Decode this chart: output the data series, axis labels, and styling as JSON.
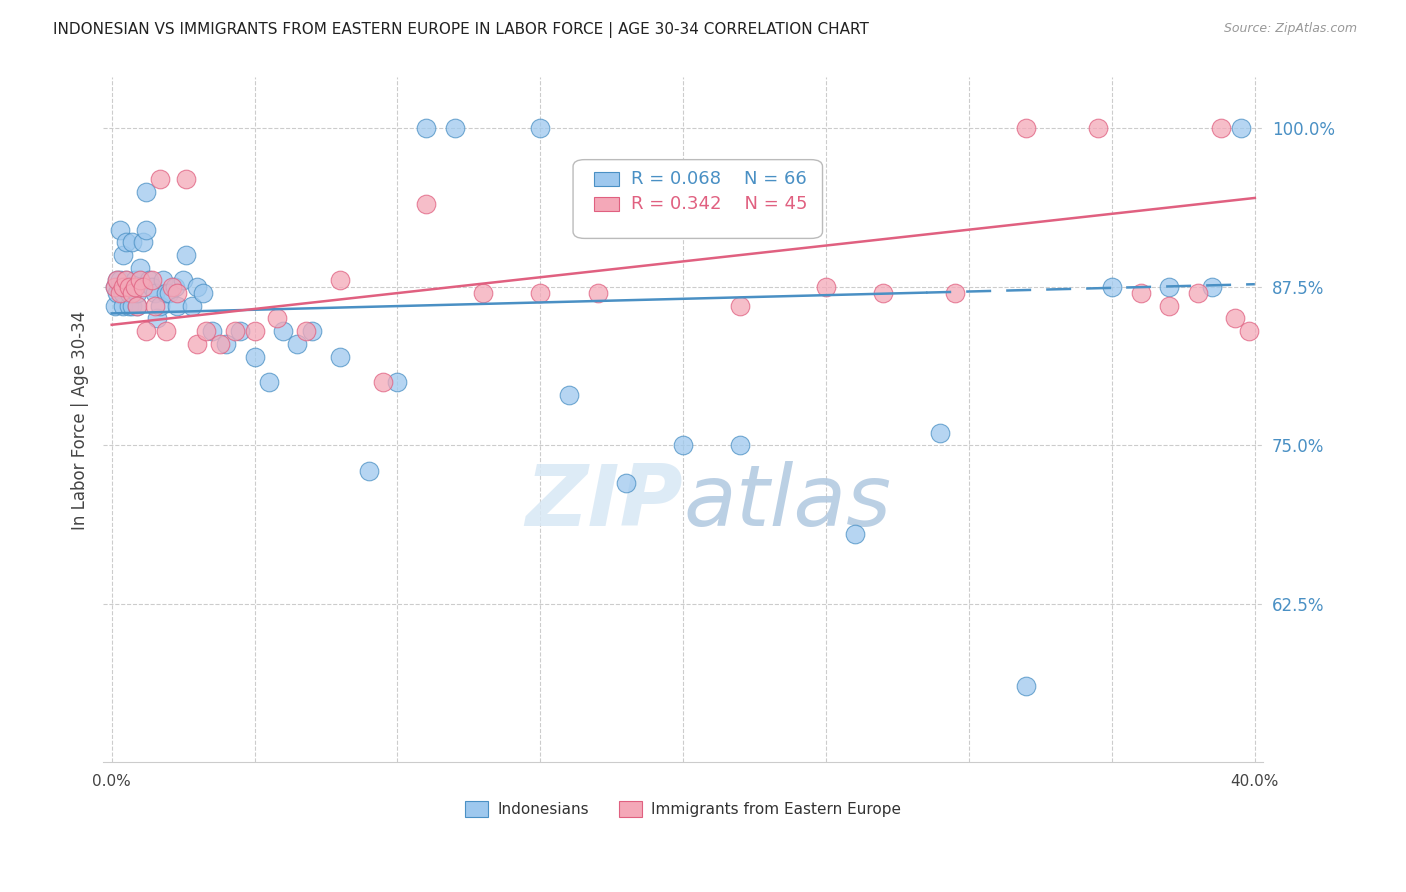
{
  "title": "INDONESIAN VS IMMIGRANTS FROM EASTERN EUROPE IN LABOR FORCE | AGE 30-34 CORRELATION CHART",
  "source": "Source: ZipAtlas.com",
  "ylabel": "In Labor Force | Age 30-34",
  "xlim": [
    -0.003,
    0.403
  ],
  "ylim": [
    0.5,
    1.04
  ],
  "xticks": [
    0.0,
    0.05,
    0.1,
    0.15,
    0.2,
    0.25,
    0.3,
    0.35,
    0.4
  ],
  "xtick_labels": [
    "0.0%",
    "",
    "",
    "",
    "",
    "",
    "",
    "",
    "40.0%"
  ],
  "ytick_labels_right": [
    "100.0%",
    "87.5%",
    "75.0%",
    "62.5%"
  ],
  "ytick_vals_right": [
    1.0,
    0.875,
    0.75,
    0.625
  ],
  "indonesian_color": "#9EC8EE",
  "eastern_europe_color": "#F4A8B8",
  "trend_blue": "#4A90C4",
  "trend_pink": "#E06080",
  "grid_color": "#CCCCCC",
  "legend_r_blue": "R = 0.068",
  "legend_n_blue": "N = 66",
  "legend_r_pink": "R = 0.342",
  "legend_n_pink": "N = 45",
  "legend_label_blue": "Indonesians",
  "legend_label_pink": "Immigrants from Eastern Europe",
  "indonesian_x": [
    0.001,
    0.001,
    0.002,
    0.002,
    0.003,
    0.003,
    0.003,
    0.004,
    0.004,
    0.004,
    0.005,
    0.005,
    0.005,
    0.006,
    0.006,
    0.007,
    0.007,
    0.008,
    0.008,
    0.009,
    0.009,
    0.01,
    0.01,
    0.011,
    0.012,
    0.012,
    0.013,
    0.014,
    0.015,
    0.016,
    0.017,
    0.018,
    0.019,
    0.02,
    0.022,
    0.023,
    0.025,
    0.026,
    0.028,
    0.03,
    0.032,
    0.035,
    0.04,
    0.045,
    0.05,
    0.055,
    0.06,
    0.065,
    0.07,
    0.08,
    0.09,
    0.1,
    0.11,
    0.12,
    0.15,
    0.16,
    0.18,
    0.2,
    0.22,
    0.26,
    0.29,
    0.32,
    0.35,
    0.37,
    0.385,
    0.395
  ],
  "indonesian_y": [
    0.875,
    0.86,
    0.87,
    0.88,
    0.875,
    0.88,
    0.92,
    0.86,
    0.87,
    0.9,
    0.875,
    0.88,
    0.91,
    0.86,
    0.87,
    0.86,
    0.91,
    0.875,
    0.88,
    0.86,
    0.87,
    0.88,
    0.89,
    0.91,
    0.95,
    0.92,
    0.88,
    0.875,
    0.87,
    0.85,
    0.86,
    0.88,
    0.87,
    0.87,
    0.875,
    0.86,
    0.88,
    0.9,
    0.86,
    0.875,
    0.87,
    0.84,
    0.83,
    0.84,
    0.82,
    0.8,
    0.84,
    0.83,
    0.84,
    0.82,
    0.73,
    0.8,
    1.0,
    1.0,
    1.0,
    0.79,
    0.72,
    0.75,
    0.75,
    0.68,
    0.76,
    0.56,
    0.875,
    0.875,
    0.875,
    1.0
  ],
  "eastern_x": [
    0.001,
    0.002,
    0.003,
    0.004,
    0.005,
    0.006,
    0.007,
    0.008,
    0.009,
    0.01,
    0.011,
    0.012,
    0.014,
    0.015,
    0.017,
    0.019,
    0.021,
    0.023,
    0.026,
    0.03,
    0.033,
    0.038,
    0.043,
    0.05,
    0.058,
    0.068,
    0.08,
    0.095,
    0.11,
    0.13,
    0.15,
    0.17,
    0.2,
    0.22,
    0.25,
    0.27,
    0.295,
    0.32,
    0.345,
    0.36,
    0.37,
    0.38,
    0.388,
    0.393,
    0.398
  ],
  "eastern_y": [
    0.875,
    0.88,
    0.87,
    0.875,
    0.88,
    0.875,
    0.87,
    0.875,
    0.86,
    0.88,
    0.875,
    0.84,
    0.88,
    0.86,
    0.96,
    0.84,
    0.875,
    0.87,
    0.96,
    0.83,
    0.84,
    0.83,
    0.84,
    0.84,
    0.85,
    0.84,
    0.88,
    0.8,
    0.94,
    0.87,
    0.87,
    0.87,
    0.93,
    0.86,
    0.875,
    0.87,
    0.87,
    1.0,
    1.0,
    0.87,
    0.86,
    0.87,
    1.0,
    0.85,
    0.84
  ],
  "trend_blue_x0": 0.0,
  "trend_blue_x1": 0.4,
  "trend_blue_y0": 0.854,
  "trend_blue_y1": 0.877,
  "trend_blue_solid_end": 0.285,
  "trend_pink_x0": 0.0,
  "trend_pink_x1": 0.4,
  "trend_pink_y0": 0.845,
  "trend_pink_y1": 0.945
}
